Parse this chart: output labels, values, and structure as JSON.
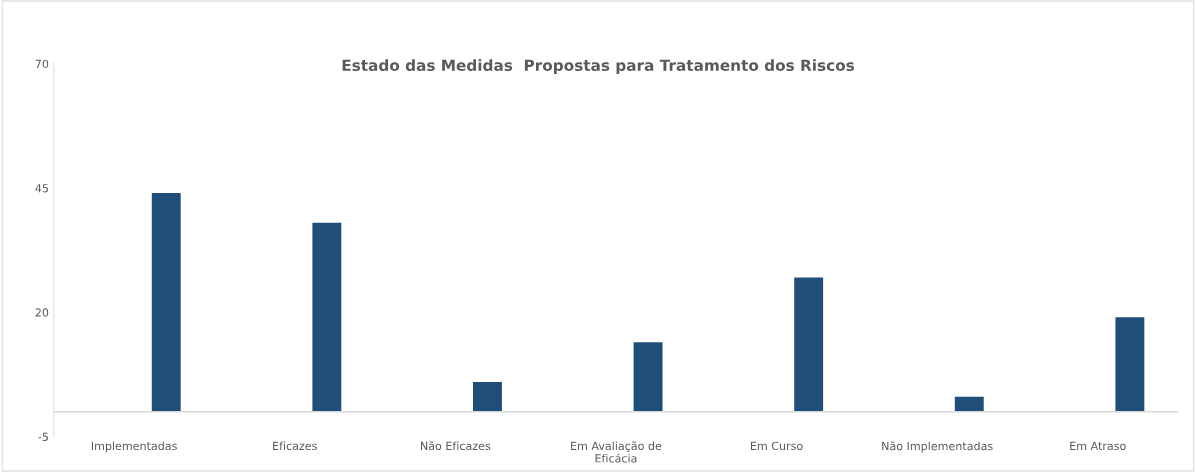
{
  "chart_data": {
    "type": "bar",
    "title": "Estado das Medidas  Propostas para Tratamento dos Riscos",
    "categories": [
      "Implementadas",
      "Eficazes",
      "Não Eficazes",
      "Em Avaliação de\nEficácia",
      "Em Curso",
      "Não Implementadas",
      "Em Atraso"
    ],
    "values": [
      44,
      38,
      6,
      14,
      27,
      3,
      19
    ],
    "color": "#1f4e79",
    "ylim": [
      -5,
      70
    ],
    "yticks": [
      -5,
      20,
      45,
      70
    ],
    "grid": false
  }
}
